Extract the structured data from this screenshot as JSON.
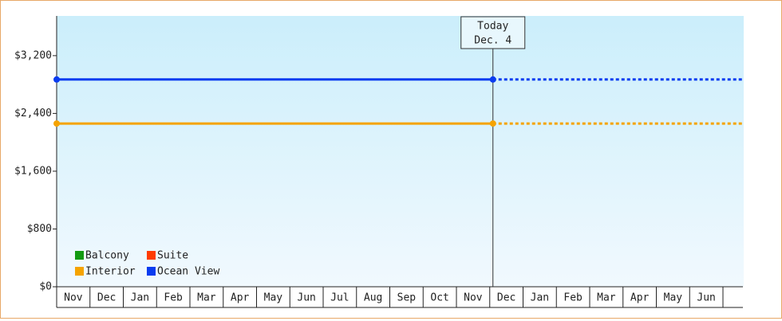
{
  "chart_data": {
    "type": "line",
    "categories": [
      "Nov",
      "Dec",
      "Jan",
      "Feb",
      "Mar",
      "Apr",
      "May",
      "Jun",
      "Jul",
      "Aug",
      "Sep",
      "Oct",
      "Nov",
      "Dec",
      "Jan",
      "Feb",
      "Mar",
      "Apr",
      "May",
      "Jun"
    ],
    "series": [
      {
        "name": "Balcony",
        "color": "#129a12",
        "values": [
          null,
          null,
          null,
          null,
          null,
          null,
          null,
          null,
          null,
          null,
          null,
          null,
          null,
          null,
          null,
          null,
          null,
          null,
          null,
          null
        ]
      },
      {
        "name": "Suite",
        "color": "#ff3c00",
        "values": [
          null,
          null,
          null,
          null,
          null,
          null,
          null,
          null,
          null,
          null,
          null,
          null,
          null,
          null,
          null,
          null,
          null,
          null,
          null,
          null
        ]
      },
      {
        "name": "Interior",
        "color": "#f5a300",
        "values": [
          2260,
          2260,
          2260,
          2260,
          2260,
          2260,
          2260,
          2260,
          2260,
          2260,
          2260,
          2260,
          2260,
          2260,
          2260,
          2260,
          2260,
          2260,
          2260,
          2260
        ]
      },
      {
        "name": "Ocean View",
        "color": "#0a3cf0",
        "values": [
          2870,
          2870,
          2870,
          2870,
          2870,
          2870,
          2870,
          2870,
          2870,
          2870,
          2870,
          2870,
          2870,
          2870,
          2870,
          2870,
          2870,
          2870,
          2870,
          2870
        ]
      }
    ],
    "today": {
      "label": "Today",
      "date": "Dec. 4"
    },
    "ylim": [
      0,
      3750
    ],
    "yticks": [
      {
        "value": 0,
        "label": "$0"
      },
      {
        "value": 800,
        "label": "$800"
      },
      {
        "value": 1600,
        "label": "$1,600"
      },
      {
        "value": 2400,
        "label": "$2,400"
      },
      {
        "value": 3200,
        "label": "$3,200"
      }
    ]
  }
}
